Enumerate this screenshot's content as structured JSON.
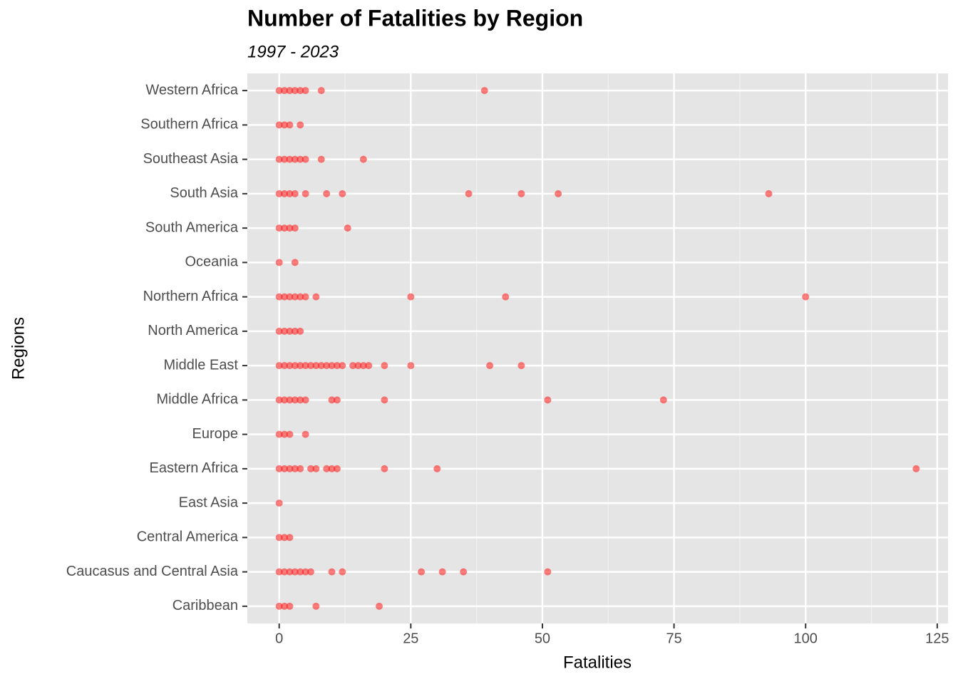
{
  "chart_data": {
    "type": "strip",
    "title": "Number of Fatalities by Region",
    "subtitle": "1997 - 2023",
    "x_label": "Fatalities",
    "y_label": "Regions",
    "categories": [
      "Caribbean",
      "Caucasus and Central Asia",
      "Central America",
      "East Asia",
      "Eastern Africa",
      "Europe",
      "Middle Africa",
      "Middle East",
      "North America",
      "Northern Africa",
      "Oceania",
      "South America",
      "South Asia",
      "Southeast Asia",
      "Southern Africa",
      "Western Africa"
    ],
    "values": [
      [
        0,
        1,
        2,
        7,
        19
      ],
      [
        0,
        1,
        2,
        3,
        4,
        5,
        6,
        10,
        12,
        27,
        31,
        35,
        51
      ],
      [
        0,
        1,
        2
      ],
      [
        0
      ],
      [
        0,
        1,
        2,
        3,
        4,
        6,
        7,
        9,
        10,
        11,
        20,
        30,
        121
      ],
      [
        0,
        1,
        2,
        5
      ],
      [
        0,
        1,
        2,
        3,
        4,
        5,
        10,
        11,
        20,
        51,
        73
      ],
      [
        0,
        1,
        2,
        3,
        4,
        5,
        6,
        7,
        8,
        9,
        10,
        11,
        12,
        14,
        15,
        16,
        17,
        20,
        25,
        40,
        46
      ],
      [
        0,
        1,
        2,
        3,
        4
      ],
      [
        0,
        1,
        2,
        3,
        4,
        5,
        7,
        25,
        43,
        100
      ],
      [
        0,
        3
      ],
      [
        0,
        1,
        2,
        3,
        13
      ],
      [
        0,
        1,
        2,
        3,
        5,
        9,
        12,
        36,
        46,
        53,
        93
      ],
      [
        0,
        1,
        2,
        3,
        4,
        5,
        8,
        16
      ],
      [
        0,
        1,
        2,
        4
      ],
      [
        0,
        1,
        2,
        3,
        4,
        5,
        8,
        39
      ]
    ],
    "color": "#ff0000",
    "alpha": 0.5,
    "xlim": [
      -6.05,
      127.05
    ],
    "xticks": [
      0,
      25,
      50,
      75,
      100,
      125
    ],
    "x_minor_ticks": [
      12.5,
      37.5,
      62.5,
      87.5,
      112.5
    ],
    "grid": true
  }
}
